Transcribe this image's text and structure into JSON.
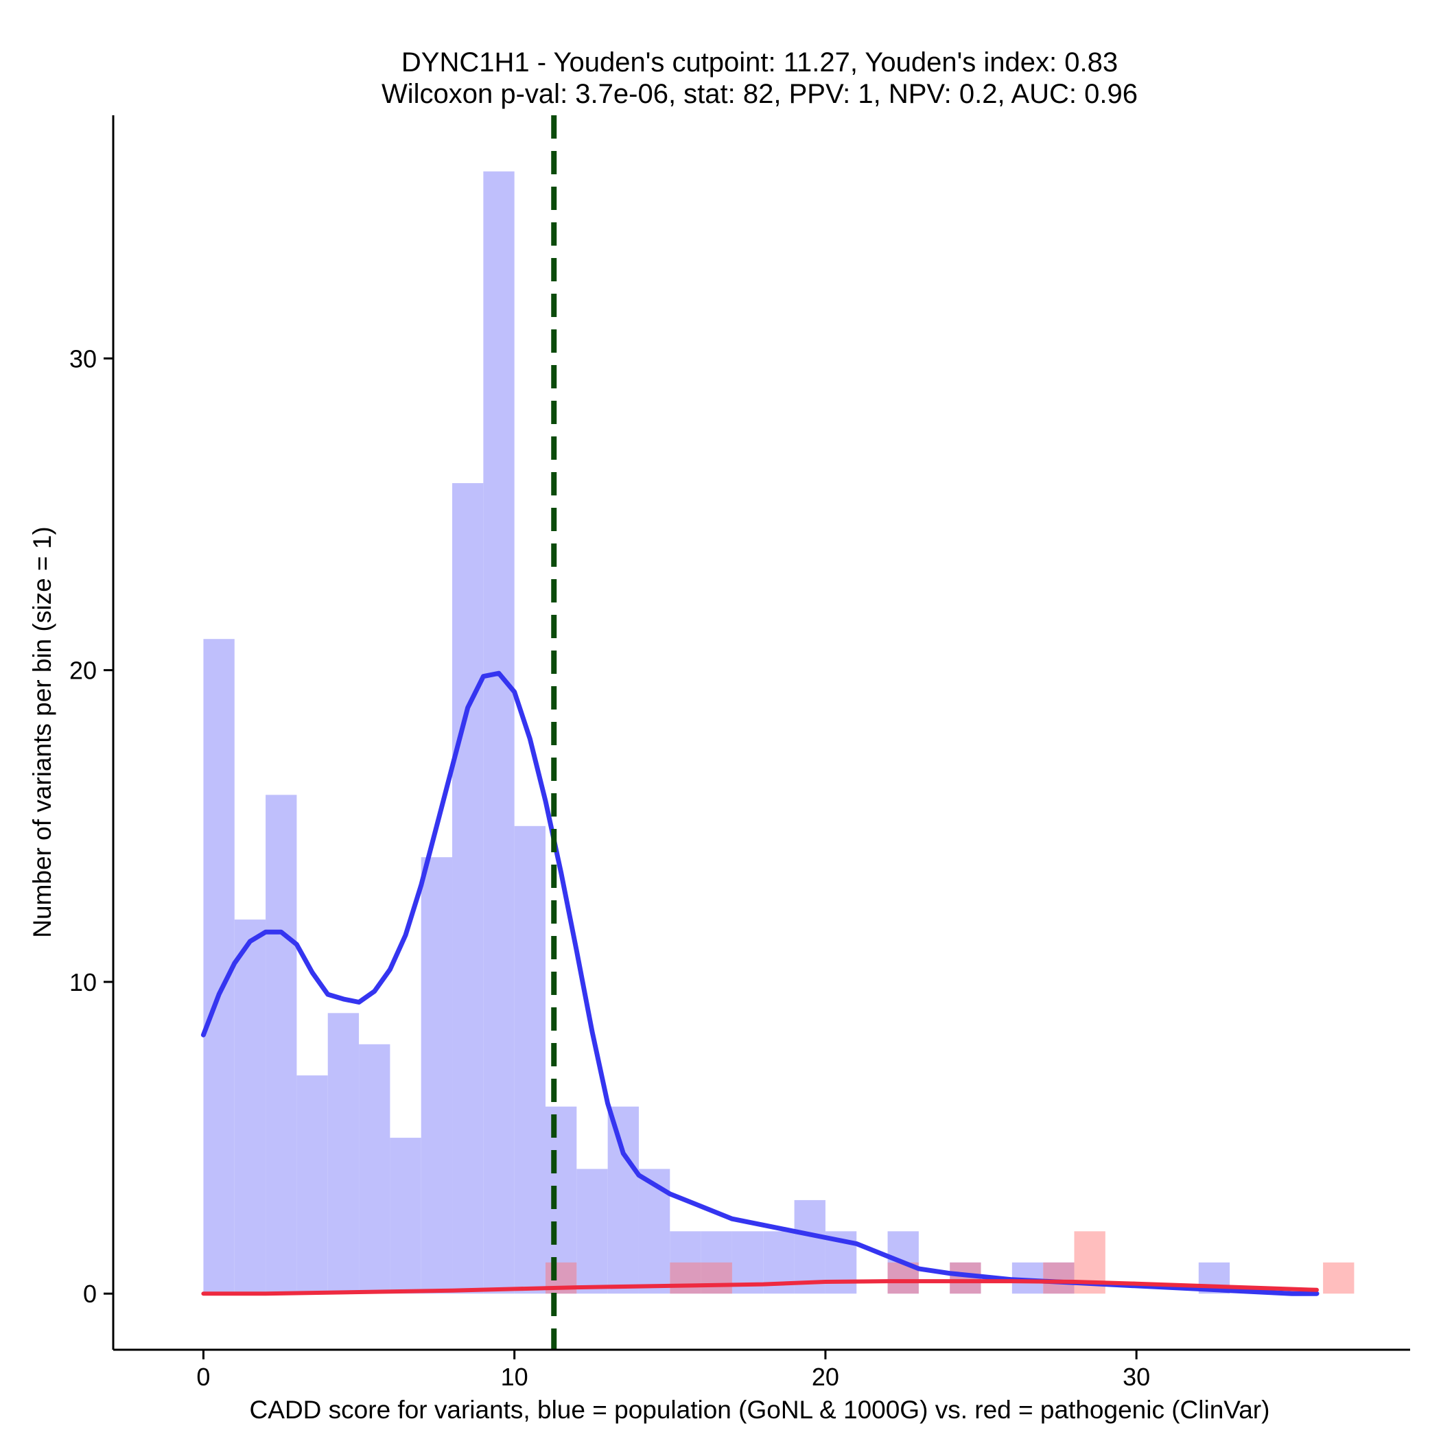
{
  "chart_data": {
    "type": "bar",
    "title_line1": "DYNC1H1 - Youden's cutpoint: 11.27, Youden's index: 0.83",
    "title_line2": "Wilcoxon p-val: 3.7e-06, stat: 82, PPV: 1, NPV: 0.2, AUC: 0.96",
    "xlabel": "CADD score for variants, blue = population (GoNL & 1000G) vs. red = pathogenic (ClinVar)",
    "ylabel": "Number of variants per bin (size = 1)",
    "xlim": [
      -2.9,
      38.8
    ],
    "ylim": [
      -1.8,
      37.8
    ],
    "xticks": [
      0,
      10,
      20,
      30
    ],
    "yticks": [
      0,
      10,
      20,
      30
    ],
    "bin_width": 1,
    "cutpoint": 11.27,
    "colors": {
      "population_bar": "#bfbffc",
      "pathogenic_bar": "#ff6e6e",
      "population_line": "#3535f0",
      "pathogenic_line": "#ee2a40",
      "cutpoint_line": "#0a4a0a"
    },
    "series": [
      {
        "name": "population (GoNL & 1000G)",
        "bin_starts": [
          0,
          1,
          2,
          3,
          4,
          5,
          6,
          7,
          8,
          9,
          10,
          11,
          12,
          13,
          14,
          15,
          16,
          17,
          18,
          19,
          20,
          21,
          22,
          23,
          24,
          25,
          26,
          27,
          28,
          29,
          30,
          31,
          32,
          33,
          34,
          35,
          36
        ],
        "values": [
          21,
          12,
          16,
          7,
          9,
          8,
          5,
          14,
          26,
          36,
          15,
          6,
          4,
          6,
          4,
          2,
          2,
          2,
          2,
          3,
          2,
          0,
          2,
          0,
          1,
          0,
          1,
          1,
          0,
          0,
          0,
          0,
          1,
          0,
          0,
          0,
          0
        ]
      },
      {
        "name": "pathogenic (ClinVar)",
        "bin_starts": [
          0,
          1,
          2,
          3,
          4,
          5,
          6,
          7,
          8,
          9,
          10,
          11,
          12,
          13,
          14,
          15,
          16,
          17,
          18,
          19,
          20,
          21,
          22,
          23,
          24,
          25,
          26,
          27,
          28,
          29,
          30,
          31,
          32,
          33,
          34,
          35,
          36
        ],
        "values": [
          0,
          0,
          0,
          0,
          0,
          0,
          0,
          0,
          0,
          0,
          0,
          1,
          0,
          0,
          0,
          1,
          1,
          0,
          0,
          0,
          0,
          0,
          1,
          0,
          1,
          0,
          0,
          1,
          2,
          0,
          0,
          0,
          0,
          0,
          0,
          0,
          1
        ]
      }
    ],
    "density_curves": [
      {
        "name": "population",
        "points": [
          [
            0,
            8.3
          ],
          [
            0.5,
            9.6
          ],
          [
            1,
            10.6
          ],
          [
            1.5,
            11.3
          ],
          [
            2,
            11.6
          ],
          [
            2.5,
            11.6
          ],
          [
            3,
            11.2
          ],
          [
            3.5,
            10.3
          ],
          [
            4,
            9.6
          ],
          [
            4.5,
            9.45
          ],
          [
            5,
            9.35
          ],
          [
            5.5,
            9.7
          ],
          [
            6,
            10.4
          ],
          [
            6.5,
            11.5
          ],
          [
            7,
            13.1
          ],
          [
            7.5,
            15.0
          ],
          [
            8,
            16.9
          ],
          [
            8.5,
            18.8
          ],
          [
            9,
            19.8
          ],
          [
            9.5,
            19.9
          ],
          [
            10,
            19.3
          ],
          [
            10.5,
            17.8
          ],
          [
            11,
            15.8
          ],
          [
            11.5,
            13.5
          ],
          [
            12,
            11.0
          ],
          [
            12.5,
            8.4
          ],
          [
            13,
            6.1
          ],
          [
            13.5,
            4.5
          ],
          [
            14,
            3.8
          ],
          [
            14.5,
            3.5
          ],
          [
            15,
            3.2
          ],
          [
            16,
            2.8
          ],
          [
            17,
            2.4
          ],
          [
            18,
            2.2
          ],
          [
            19,
            2.0
          ],
          [
            20,
            1.8
          ],
          [
            21,
            1.6
          ],
          [
            22,
            1.2
          ],
          [
            23,
            0.8
          ],
          [
            24,
            0.65
          ],
          [
            25,
            0.55
          ],
          [
            26,
            0.45
          ],
          [
            27,
            0.4
          ],
          [
            28,
            0.35
          ],
          [
            29,
            0.3
          ],
          [
            30,
            0.25
          ],
          [
            31,
            0.2
          ],
          [
            32,
            0.15
          ],
          [
            33,
            0.1
          ],
          [
            34,
            0.05
          ],
          [
            35,
            0.0
          ],
          [
            35.8,
            0.0
          ]
        ]
      },
      {
        "name": "pathogenic",
        "points": [
          [
            0,
            0.0
          ],
          [
            2,
            0.0
          ],
          [
            5,
            0.05
          ],
          [
            8,
            0.1
          ],
          [
            10,
            0.15
          ],
          [
            12,
            0.2
          ],
          [
            15,
            0.25
          ],
          [
            18,
            0.3
          ],
          [
            20,
            0.38
          ],
          [
            22,
            0.4
          ],
          [
            24,
            0.4
          ],
          [
            26,
            0.4
          ],
          [
            28,
            0.38
          ],
          [
            30,
            0.32
          ],
          [
            32,
            0.25
          ],
          [
            34,
            0.18
          ],
          [
            35.8,
            0.12
          ]
        ]
      }
    ]
  }
}
